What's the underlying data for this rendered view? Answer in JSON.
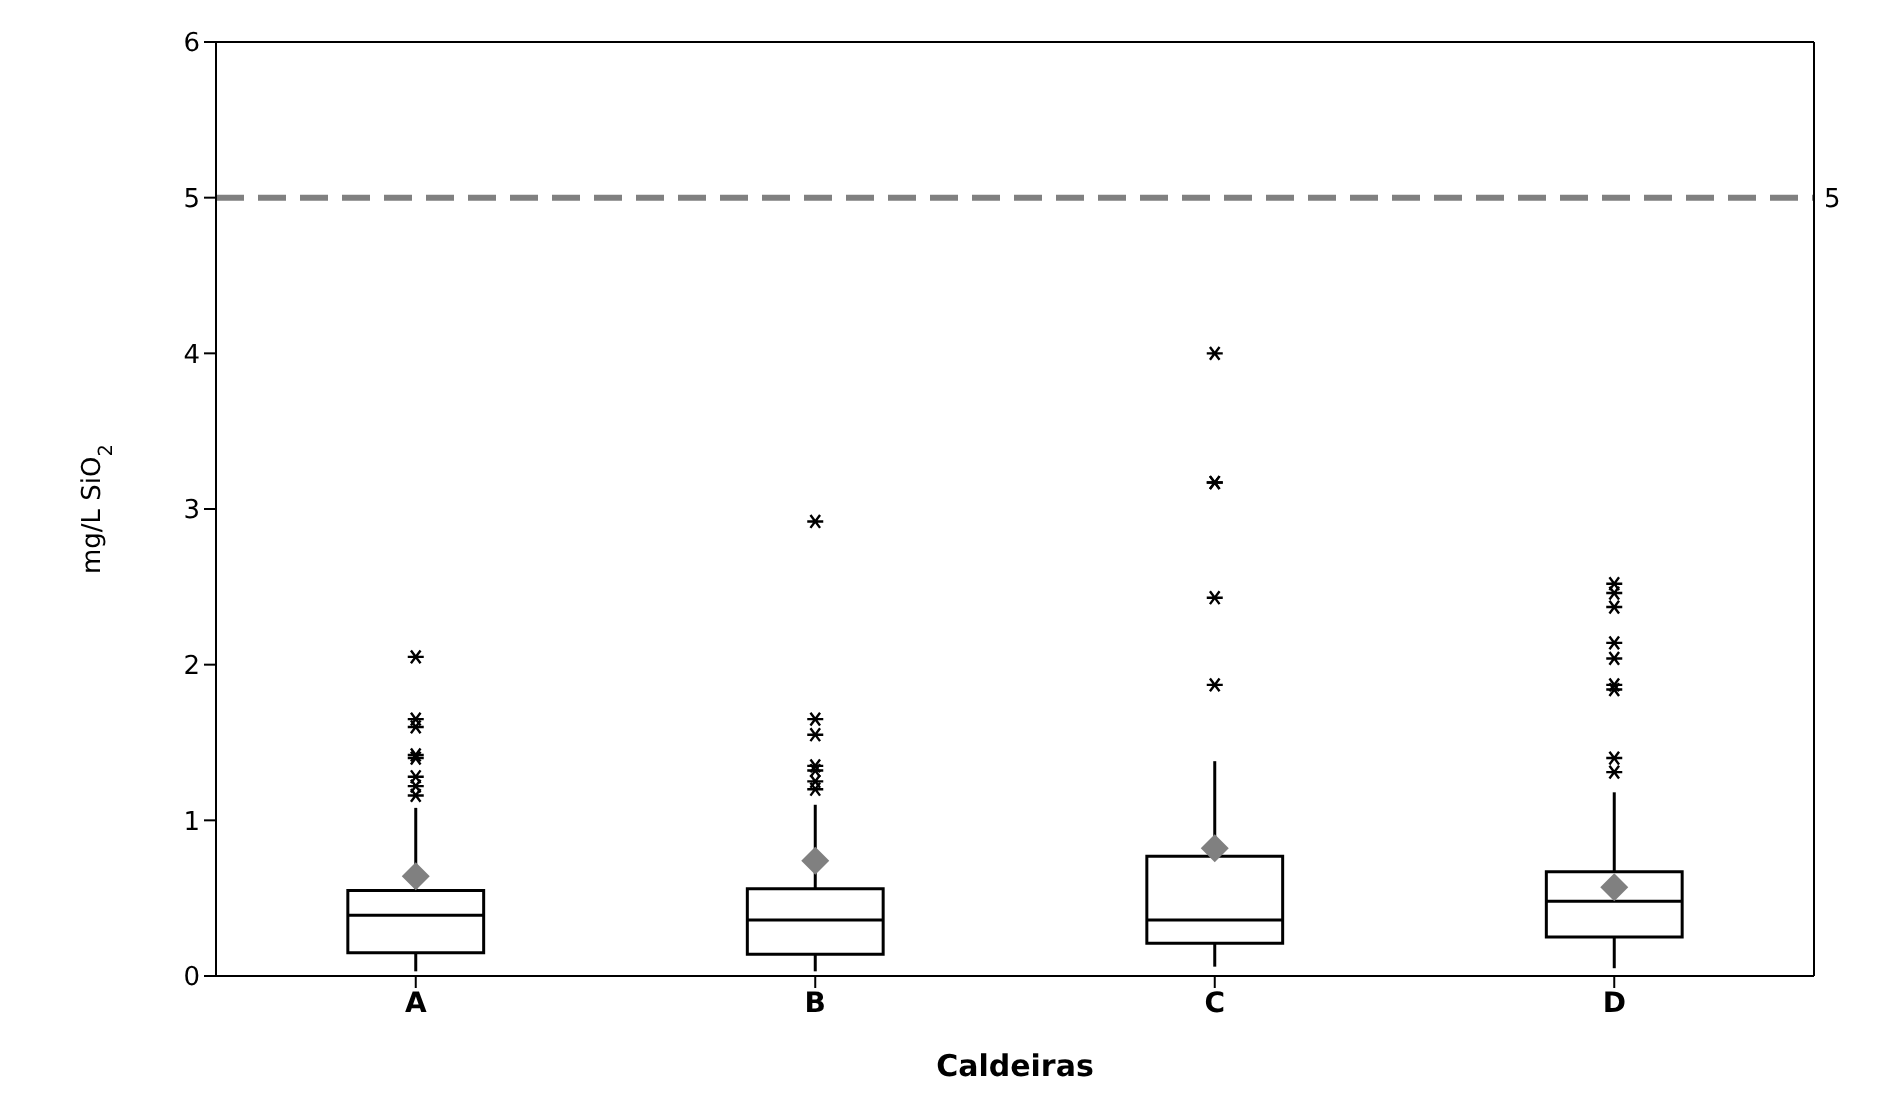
{
  "chart_data": {
    "type": "box",
    "xlabel": "Caldeiras",
    "ylabel": "mg/L SiO$_{2}$",
    "categories": [
      "A",
      "B",
      "C",
      "D"
    ],
    "boxes": [
      {
        "low": 0.03,
        "q1": 0.15,
        "median": 0.39,
        "q3": 0.55,
        "high": 1.08,
        "mean": 0.64,
        "outliers": [
          2.05,
          1.65,
          1.6,
          1.42,
          1.4,
          1.28,
          1.22,
          1.16
        ]
      },
      {
        "low": 0.03,
        "q1": 0.14,
        "median": 0.36,
        "q3": 0.56,
        "high": 1.1,
        "mean": 0.74,
        "outliers": [
          2.92,
          1.65,
          1.55,
          1.35,
          1.32,
          1.25,
          1.2
        ]
      },
      {
        "low": 0.06,
        "q1": 0.21,
        "median": 0.36,
        "q3": 0.77,
        "high": 1.38,
        "mean": 0.82,
        "outliers": [
          4.0,
          3.17,
          3.17,
          2.43,
          1.87
        ]
      },
      {
        "low": 0.05,
        "q1": 0.25,
        "median": 0.48,
        "q3": 0.67,
        "high": 1.18,
        "mean": 0.57,
        "outliers": [
          2.52,
          2.46,
          2.37,
          2.14,
          2.04,
          1.87,
          1.84,
          1.4,
          1.31
        ]
      }
    ],
    "ylim": [
      0,
      6
    ],
    "yticks": [
      0,
      1,
      2,
      3,
      4,
      5,
      6
    ],
    "ref_lines": [
      {
        "axis": "y",
        "value": 5,
        "label": "5",
        "color": "#808080",
        "line_style": "dashed"
      }
    ]
  }
}
